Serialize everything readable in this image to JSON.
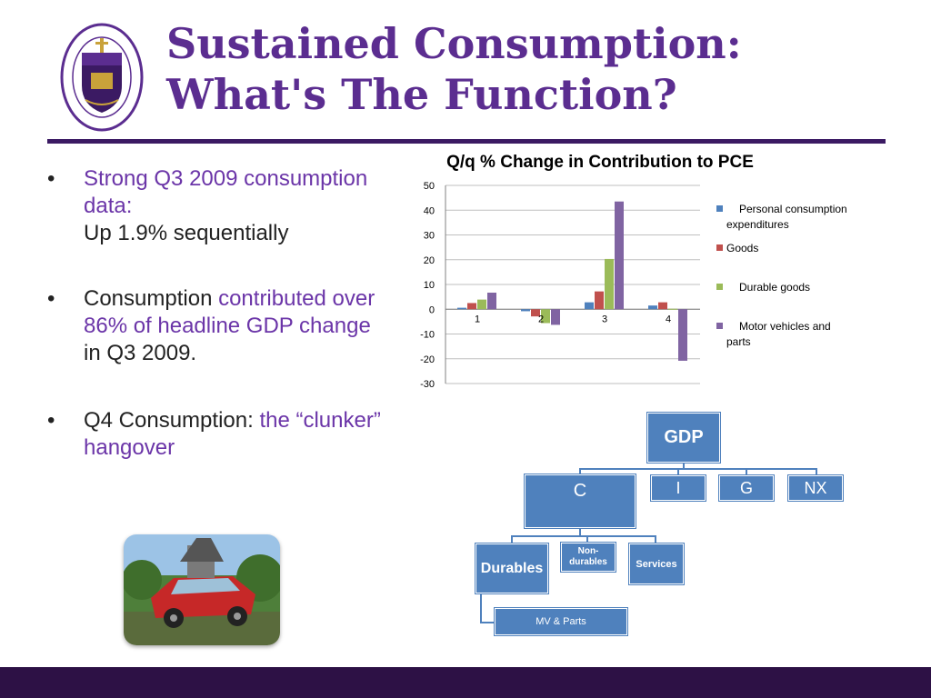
{
  "slide": {
    "title_line1": "Sustained Consumption:",
    "title_line2": "What's The Function?"
  },
  "bullets": [
    {
      "highlight": "Strong Q3 2009 consumption data:",
      "text": "Up 1.9% sequentially"
    },
    {
      "pre": "Consumption ",
      "highlight": "contributed over 86% of headline GDP change",
      "post": " in Q3 2009."
    },
    {
      "pre": "Q4 Consumption: ",
      "highlight": "the “clunker” hangover"
    }
  ],
  "colors": {
    "title": "#5b2d90",
    "highlight": "#6b35a8",
    "footer": "#2d1145",
    "org_box": "#4f81bd"
  },
  "chart_data": {
    "type": "bar",
    "title": "Q/q % Change in Contribution to PCE",
    "categories": [
      "1",
      "2",
      "3",
      "4"
    ],
    "ylim": [
      -30,
      50
    ],
    "yticks": [
      "50",
      "40",
      "30",
      "20",
      "10",
      "0",
      "-10",
      "-20",
      "-30"
    ],
    "grid": true,
    "legend_position": "right",
    "series": [
      {
        "name": "Personal consumption expenditures",
        "color": "#4f81bd",
        "values": [
          0.6,
          -0.8,
          2.8,
          1.5
        ]
      },
      {
        "name": "Goods",
        "color": "#c0504d",
        "values": [
          2.5,
          -2.9,
          7.2,
          2.8
        ]
      },
      {
        "name": "Durable goods",
        "color": "#9bbb59",
        "values": [
          3.9,
          -5.6,
          20.3,
          0.2
        ]
      },
      {
        "name": "Motor vehicles and parts",
        "color": "#8064a2",
        "values": [
          6.7,
          -6.3,
          43.5,
          -20.8
        ]
      }
    ]
  },
  "org_chart": {
    "gdp": "GDP",
    "c": "C",
    "i": "I",
    "g": "G",
    "nx": "NX",
    "durables": "Durables",
    "nondurables": "Non-durables",
    "services": "Services",
    "mv_parts": "MV & Parts"
  }
}
